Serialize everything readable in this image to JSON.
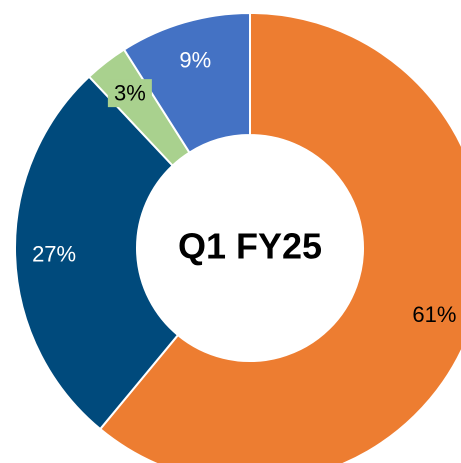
{
  "chart_data": {
    "type": "donut",
    "title": "Q1 FY25",
    "values": [
      61,
      27,
      3,
      9
    ],
    "value_labels": [
      "61%",
      "27%",
      "3%",
      "9%"
    ],
    "colors": [
      "#ED7D31",
      "#004A7C",
      "#A9D18E",
      "#4472C4"
    ]
  }
}
